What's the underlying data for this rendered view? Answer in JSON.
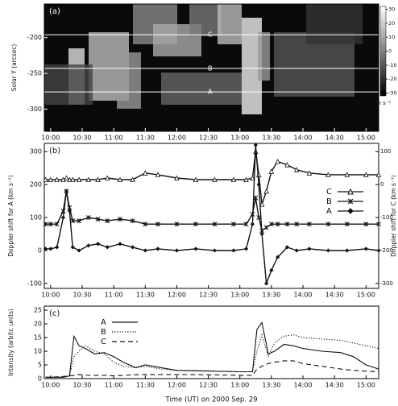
{
  "chart_data": [
    {
      "type": "image",
      "panel_label": "(a)",
      "ylabel": "Solar Y (arcsec)",
      "xlim": [
        9.9,
        15.2
      ],
      "ylim": [
        -331,
        -153
      ],
      "xticks": [
        {
          "value": 10,
          "label": "10:00"
        },
        {
          "value": 10.5,
          "label": "10:30"
        },
        {
          "value": 11,
          "label": "11:00"
        },
        {
          "value": 11.5,
          "label": "11:30"
        },
        {
          "value": 12,
          "label": "12:00"
        },
        {
          "value": 12.5,
          "label": "12:30"
        },
        {
          "value": 13,
          "label": "13:00"
        },
        {
          "value": 13.5,
          "label": "13:30"
        },
        {
          "value": 14,
          "label": "14:00"
        },
        {
          "value": 14.5,
          "label": "14:30"
        },
        {
          "value": 15,
          "label": "15:00"
        }
      ],
      "yticks": [
        -200,
        -250,
        -300
      ],
      "slits": [
        {
          "label": "C",
          "y": -196
        },
        {
          "label": "B",
          "y": -243
        },
        {
          "label": "A",
          "y": -276
        }
      ],
      "clim": [
        -32,
        32
      ],
      "cticks": [
        30,
        20,
        10,
        0,
        -10,
        -20,
        -30
      ],
      "colorbar_label": "km s⁻¹"
    },
    {
      "type": "line",
      "panel_label": "(b)",
      "ylabel": "Doppler shift for A (km s⁻¹)",
      "y2label": "Doppler shift for C (km s⁻¹)",
      "xlim": [
        9.9,
        15.2
      ],
      "ylim": [
        -115,
        325
      ],
      "y2lim": [
        -315,
        125
      ],
      "xticks": [
        {
          "value": 10,
          "label": "10:00"
        },
        {
          "value": 10.5,
          "label": "10:30"
        },
        {
          "value": 11,
          "label": "11:00"
        },
        {
          "value": 11.5,
          "label": "11:30"
        },
        {
          "value": 12,
          "label": "12:00"
        },
        {
          "value": 12.5,
          "label": "12:30"
        },
        {
          "value": 13,
          "label": "13:00"
        },
        {
          "value": 13.5,
          "label": "13:30"
        },
        {
          "value": 14,
          "label": "14:00"
        },
        {
          "value": 14.5,
          "label": "14:30"
        },
        {
          "value": 15,
          "label": "15:00"
        }
      ],
      "yticks": [
        -100,
        0,
        100,
        200,
        300
      ],
      "y2ticks": [
        -300,
        -200,
        -100,
        0,
        100
      ],
      "x": [
        9.92,
        10.0,
        10.1,
        10.2,
        10.25,
        10.3,
        10.35,
        10.45,
        10.6,
        10.75,
        10.9,
        11.1,
        11.3,
        11.5,
        11.7,
        12.0,
        12.3,
        12.6,
        12.9,
        13.1,
        13.2,
        13.25,
        13.3,
        13.35,
        13.42,
        13.5,
        13.6,
        13.75,
        13.9,
        14.1,
        14.4,
        14.7,
        15.0,
        15.2
      ],
      "series": [
        {
          "name": "C",
          "marker": "triangle",
          "axis": "y2",
          "color": "#111",
          "values": [
            15,
            15,
            15,
            15,
            20,
            15,
            15,
            15,
            15,
            15,
            20,
            15,
            15,
            35,
            30,
            20,
            15,
            15,
            15,
            15,
            20,
            100,
            30,
            -60,
            -20,
            40,
            70,
            60,
            45,
            35,
            30,
            30,
            30,
            30
          ]
        },
        {
          "name": "B",
          "marker": "star",
          "color": "#111",
          "values": [
            80,
            80,
            80,
            120,
            180,
            130,
            90,
            90,
            100,
            95,
            90,
            95,
            90,
            80,
            80,
            80,
            80,
            80,
            80,
            80,
            110,
            160,
            100,
            60,
            70,
            80,
            80,
            80,
            80,
            80,
            80,
            80,
            80,
            80
          ]
        },
        {
          "name": "A",
          "marker": "diamond",
          "color": "#111",
          "values": [
            5,
            5,
            10,
            100,
            180,
            120,
            10,
            0,
            15,
            20,
            10,
            20,
            10,
            0,
            5,
            0,
            5,
            0,
            0,
            5,
            80,
            320,
            200,
            50,
            -100,
            -60,
            -20,
            10,
            0,
            5,
            0,
            0,
            5,
            0
          ]
        }
      ]
    },
    {
      "type": "line",
      "panel_label": "(c)",
      "ylabel": "Intensity (arbitr. units)",
      "xlabel": "Time (UT) on 2000 Sep. 29",
      "xlim": [
        9.9,
        15.2
      ],
      "ylim": [
        0,
        26.5
      ],
      "xticks": [
        {
          "value": 10,
          "label": "10:00"
        },
        {
          "value": 10.5,
          "label": "10:30"
        },
        {
          "value": 11,
          "label": "11:00"
        },
        {
          "value": 11.5,
          "label": "11:30"
        },
        {
          "value": 12,
          "label": "12:00"
        },
        {
          "value": 12.5,
          "label": "12:30"
        },
        {
          "value": 13,
          "label": "13:00"
        },
        {
          "value": 13.5,
          "label": "13:30"
        },
        {
          "value": 14,
          "label": "14:00"
        },
        {
          "value": 14.5,
          "label": "14:30"
        },
        {
          "value": 15,
          "label": "15:00"
        }
      ],
      "yticks": [
        0,
        5,
        10,
        15,
        20,
        25
      ],
      "x": [
        9.92,
        10.0,
        10.2,
        10.3,
        10.37,
        10.45,
        10.55,
        10.7,
        10.85,
        11.0,
        11.15,
        11.35,
        11.5,
        11.75,
        12.0,
        12.5,
        13.0,
        13.2,
        13.27,
        13.35,
        13.45,
        13.55,
        13.7,
        13.85,
        14.0,
        14.3,
        14.6,
        14.8,
        15.0,
        15.2
      ],
      "series": [
        {
          "name": "A",
          "dash": "solid",
          "color": "#111",
          "values": [
            0.5,
            0.5,
            0.5,
            1,
            15.5,
            12,
            11,
            9,
            9.5,
            8,
            6,
            4,
            5,
            4,
            3,
            2.8,
            2.5,
            2.5,
            18,
            20.5,
            9,
            10,
            12.5,
            12,
            11,
            10,
            9.5,
            8,
            5,
            3.5
          ]
        },
        {
          "name": "B",
          "dash": "dotted",
          "color": "#111",
          "values": [
            0.5,
            0.5,
            0.5,
            1,
            8,
            10,
            12,
            10,
            9,
            6,
            4.5,
            4,
            4.5,
            3.5,
            3,
            2.7,
            2.5,
            2.5,
            10,
            16,
            8,
            13,
            15.5,
            16,
            15,
            14.5,
            14,
            13,
            12,
            11
          ]
        },
        {
          "name": "C",
          "dash": "dashed",
          "color": "#111",
          "values": [
            0.5,
            0.5,
            0.8,
            1,
            1.2,
            1.5,
            1.3,
            1.2,
            1.2,
            1,
            1.2,
            1.4,
            1.5,
            1.5,
            1.5,
            1.4,
            1.2,
            1.2,
            3.5,
            4.5,
            5.5,
            6,
            6.5,
            6.5,
            5.5,
            4.5,
            3.5,
            3,
            2.7,
            2.5
          ]
        }
      ]
    }
  ]
}
